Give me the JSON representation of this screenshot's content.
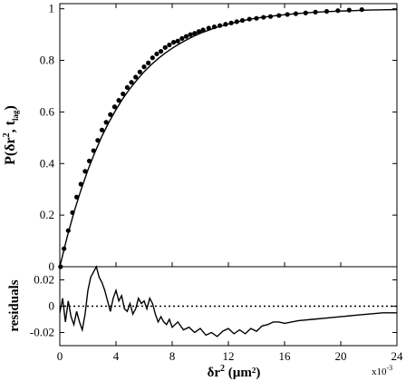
{
  "chart_data": [
    {
      "type": "scatter",
      "panel": "top",
      "ylabel_main": "P(δr",
      "ylabel_sup": "2",
      "ylabel_mid": ", t",
      "ylabel_sub": "lag",
      "ylabel_end": ")",
      "xlim": [
        0,
        24
      ],
      "ylim": [
        0,
        1.02
      ],
      "yticks": [
        "0",
        "0.2",
        "0.4",
        "0.6",
        "0.8",
        "1"
      ],
      "ytick_values": [
        0,
        0.2,
        0.4,
        0.6,
        0.8,
        1
      ],
      "grid": false,
      "series": [
        {
          "kind": "dots",
          "color": "#000000",
          "x": [
            0.05,
            0.3,
            0.6,
            0.9,
            1.2,
            1.5,
            1.8,
            2.1,
            2.4,
            2.7,
            3.0,
            3.3,
            3.6,
            3.9,
            4.2,
            4.5,
            4.8,
            5.1,
            5.4,
            5.7,
            6.0,
            6.3,
            6.6,
            6.9,
            7.2,
            7.5,
            7.8,
            8.1,
            8.4,
            8.7,
            9.0,
            9.3,
            9.6,
            9.9,
            10.2,
            10.6,
            11.0,
            11.4,
            11.8,
            12.2,
            12.6,
            13.0,
            13.5,
            14.0,
            14.5,
            15.0,
            15.6,
            16.2,
            16.8,
            17.5,
            18.2,
            19.0,
            19.8,
            20.6,
            21.5
          ],
          "y": [
            0.0,
            0.07,
            0.14,
            0.21,
            0.27,
            0.32,
            0.37,
            0.41,
            0.45,
            0.49,
            0.53,
            0.56,
            0.59,
            0.62,
            0.645,
            0.67,
            0.695,
            0.715,
            0.735,
            0.755,
            0.775,
            0.79,
            0.81,
            0.825,
            0.835,
            0.85,
            0.86,
            0.87,
            0.875,
            0.885,
            0.893,
            0.9,
            0.905,
            0.912,
            0.918,
            0.925,
            0.93,
            0.935,
            0.94,
            0.945,
            0.95,
            0.955,
            0.96,
            0.963,
            0.967,
            0.97,
            0.974,
            0.978,
            0.981,
            0.984,
            0.987,
            0.99,
            0.993,
            0.995,
            0.997
          ]
        },
        {
          "kind": "line",
          "color": "#000000",
          "x": [
            0,
            0.5,
            1,
            1.5,
            2,
            2.5,
            3,
            3.5,
            4,
            4.5,
            5,
            5.5,
            6,
            6.5,
            7,
            7.5,
            8,
            8.5,
            9,
            9.5,
            10,
            11,
            12,
            13,
            14,
            15,
            16,
            17,
            18,
            19,
            20,
            21,
            22,
            23,
            24
          ],
          "y": [
            0,
            0.111,
            0.21,
            0.297,
            0.375,
            0.444,
            0.506,
            0.561,
            0.609,
            0.653,
            0.691,
            0.725,
            0.756,
            0.783,
            0.807,
            0.828,
            0.847,
            0.864,
            0.879,
            0.893,
            0.905,
            0.925,
            0.941,
            0.954,
            0.964,
            0.971,
            0.977,
            0.982,
            0.986,
            0.989,
            0.991,
            0.993,
            0.995,
            0.996,
            0.997
          ]
        }
      ]
    },
    {
      "type": "line",
      "panel": "bottom",
      "ylabel": "residuals",
      "xlabel_main": "δr",
      "xlabel_sup": "2",
      "xlabel_end": " (µm²)",
      "x_exponent_base": "x10",
      "x_exponent_power": "-3",
      "xlim": [
        0,
        24
      ],
      "ylim": [
        -0.03,
        0.03
      ],
      "xticks": [
        "0",
        "4",
        "8",
        "12",
        "16",
        "20",
        "24"
      ],
      "xtick_values": [
        0,
        4,
        8,
        12,
        16,
        20,
        24
      ],
      "yticks": [
        "-0.02",
        "0",
        "0.02"
      ],
      "ytick_values": [
        -0.02,
        0,
        0.02
      ],
      "grid": false,
      "reference_line": {
        "y": 0,
        "style": "dotted"
      },
      "series": [
        {
          "kind": "line",
          "color": "#000000",
          "x": [
            0,
            0.2,
            0.4,
            0.6,
            0.8,
            1.0,
            1.2,
            1.4,
            1.6,
            1.8,
            2.0,
            2.2,
            2.4,
            2.6,
            2.8,
            3.0,
            3.2,
            3.4,
            3.6,
            3.8,
            4.0,
            4.2,
            4.4,
            4.6,
            4.8,
            5.0,
            5.2,
            5.4,
            5.6,
            5.8,
            6.0,
            6.2,
            6.4,
            6.6,
            6.8,
            7.0,
            7.2,
            7.4,
            7.6,
            7.8,
            8.0,
            8.4,
            8.8,
            9.2,
            9.6,
            10.0,
            10.4,
            10.8,
            11.2,
            11.6,
            12.0,
            12.4,
            12.8,
            13.2,
            13.6,
            14.0,
            14.4,
            14.8,
            15.2,
            15.6,
            16.0,
            17.0,
            18.0,
            19.0,
            20.0,
            21.0,
            22.0,
            23.0,
            24.0
          ],
          "y": [
            -0.005,
            0.006,
            -0.012,
            0.004,
            -0.008,
            -0.014,
            -0.004,
            -0.012,
            -0.018,
            -0.006,
            0.012,
            0.022,
            0.026,
            0.03,
            0.022,
            0.018,
            0.012,
            0.004,
            -0.004,
            0.006,
            0.012,
            0.004,
            0.008,
            -0.002,
            -0.004,
            0.002,
            -0.006,
            -0.002,
            0.006,
            0.002,
            0.004,
            -0.002,
            0.006,
            0.002,
            -0.006,
            -0.012,
            -0.008,
            -0.012,
            -0.014,
            -0.01,
            -0.016,
            -0.012,
            -0.018,
            -0.016,
            -0.02,
            -0.017,
            -0.022,
            -0.02,
            -0.023,
            -0.019,
            -0.017,
            -0.021,
            -0.018,
            -0.021,
            -0.017,
            -0.019,
            -0.015,
            -0.014,
            -0.012,
            -0.012,
            -0.013,
            -0.011,
            -0.01,
            -0.009,
            -0.008,
            -0.007,
            -0.006,
            -0.005,
            -0.005
          ]
        }
      ]
    }
  ]
}
